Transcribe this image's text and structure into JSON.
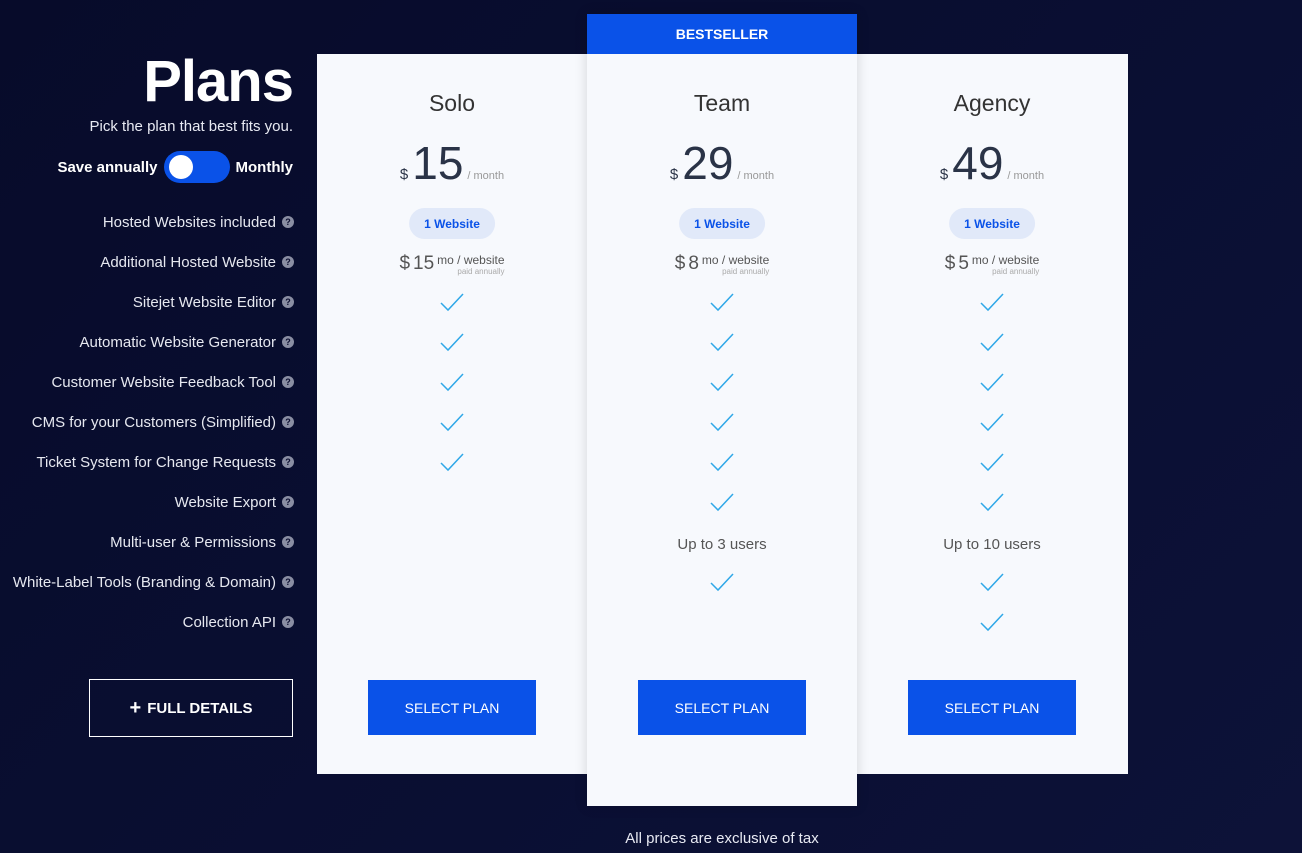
{
  "header": {
    "title": "Plans",
    "subtitle": "Pick the plan that best fits you.",
    "toggle_left": "Save annually",
    "toggle_right": "Monthly"
  },
  "features": [
    "Hosted Websites included",
    "Additional Hosted Website",
    "Sitejet Website Editor",
    "Automatic Website Generator",
    "Customer Website Feedback Tool",
    "CMS for your Customers (Simplified)",
    "Ticket System for Change Requests",
    "Website Export",
    "Multi-user & Permissions",
    "White-Label Tools (Branding & Domain)",
    "Collection API"
  ],
  "full_details": "FULL DETAILS",
  "badge": "BESTSELLER",
  "accent": "#0a52e8",
  "plans": [
    {
      "name": "Solo",
      "currency": "$",
      "price": "15",
      "period": "/ month",
      "websites": "1 Website",
      "add_price": "15",
      "add_unit": "mo / website",
      "add_note": "paid annually",
      "values": [
        "check",
        "check",
        "check",
        "check",
        "check",
        "",
        "",
        "",
        ""
      ],
      "select": "SELECT PLAN"
    },
    {
      "name": "Team",
      "currency": "$",
      "price": "29",
      "period": "/ month",
      "websites": "1 Website",
      "add_price": "8",
      "add_unit": "mo / website",
      "add_note": "paid annually",
      "values": [
        "check",
        "check",
        "check",
        "check",
        "check",
        "check",
        "Up to 3 users",
        "check",
        ""
      ],
      "select": "SELECT PLAN"
    },
    {
      "name": "Agency",
      "currency": "$",
      "price": "49",
      "period": "/ month",
      "websites": "1 Website",
      "add_price": "5",
      "add_unit": "mo / website",
      "add_note": "paid annually",
      "values": [
        "check",
        "check",
        "check",
        "check",
        "check",
        "check",
        "Up to 10 users",
        "check",
        "check"
      ],
      "select": "SELECT PLAN"
    }
  ],
  "footer": "All prices are exclusive of tax"
}
